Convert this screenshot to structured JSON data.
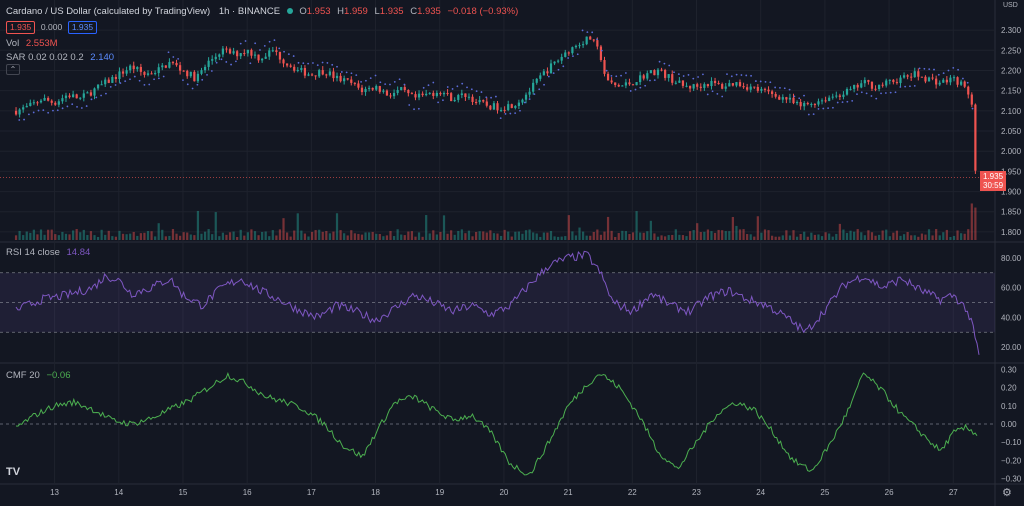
{
  "header": {
    "title": "Cardano / US Dollar (calculated by TradingView)",
    "interval": "1h",
    "exchange": "BINANCE",
    "ohlc": {
      "o_label": "O",
      "o": "1.953",
      "h_label": "H",
      "h": "1.959",
      "l_label": "L",
      "l": "1.935",
      "c_label": "C",
      "c": "1.935",
      "change": "−0.018 (−0.93%)"
    },
    "pills": [
      "1.935",
      "0.000",
      "1.935"
    ],
    "vol_label": "Vol",
    "vol_value": "2.553M",
    "sar_label": "SAR 0.02 0.02 0.2",
    "sar_value": "2.140",
    "rsi_label": "RSI 14 close",
    "rsi_value": "14.84",
    "cmf_label": "CMF 20",
    "cmf_value": "−0.06"
  },
  "currency": "USD",
  "price_tag": {
    "price": "1.935",
    "countdown": "30:59"
  },
  "colors": {
    "bg": "#131722",
    "up": "#26a69a",
    "down": "#ef5350",
    "sar": "#5b6bd6",
    "rsi": "#7e57c2",
    "cmf": "#4caf50",
    "grid": "#1e222d",
    "text": "#b2b5be"
  },
  "chart_data": [
    {
      "type": "candlestick",
      "title": "Cardano / US Dollar",
      "x_ticks": [
        "13",
        "14",
        "15",
        "16",
        "17",
        "18",
        "19",
        "20",
        "21",
        "22",
        "23",
        "24",
        "25",
        "26",
        "27"
      ],
      "y_ticks": [
        "2.300",
        "2.250",
        "2.200",
        "2.150",
        "2.100",
        "2.050",
        "2.000",
        "1.950",
        "1.900",
        "1.850",
        "1.800"
      ],
      "ylim": [
        1.78,
        2.33
      ],
      "close_series": [
        [
          12.4,
          2.1
        ],
        [
          12.6,
          2.11
        ],
        [
          12.8,
          2.13
        ],
        [
          13.0,
          2.12
        ],
        [
          13.2,
          2.14
        ],
        [
          13.4,
          2.13
        ],
        [
          13.6,
          2.15
        ],
        [
          13.8,
          2.17
        ],
        [
          14.0,
          2.19
        ],
        [
          14.2,
          2.21
        ],
        [
          14.4,
          2.19
        ],
        [
          14.6,
          2.2
        ],
        [
          14.8,
          2.22
        ],
        [
          15.0,
          2.2
        ],
        [
          15.2,
          2.18
        ],
        [
          15.4,
          2.22
        ],
        [
          15.6,
          2.25
        ],
        [
          15.8,
          2.24
        ],
        [
          16.0,
          2.25
        ],
        [
          16.2,
          2.23
        ],
        [
          16.4,
          2.25
        ],
        [
          16.6,
          2.22
        ],
        [
          16.8,
          2.2
        ],
        [
          17.0,
          2.19
        ],
        [
          17.2,
          2.2
        ],
        [
          17.4,
          2.18
        ],
        [
          17.6,
          2.17
        ],
        [
          17.8,
          2.15
        ],
        [
          18.0,
          2.16
        ],
        [
          18.2,
          2.14
        ],
        [
          18.4,
          2.15
        ],
        [
          18.6,
          2.13
        ],
        [
          18.8,
          2.14
        ],
        [
          19.0,
          2.15
        ],
        [
          19.2,
          2.13
        ],
        [
          19.4,
          2.14
        ],
        [
          19.6,
          2.12
        ],
        [
          19.8,
          2.11
        ],
        [
          20.0,
          2.11
        ],
        [
          20.2,
          2.12
        ],
        [
          20.4,
          2.15
        ],
        [
          20.6,
          2.19
        ],
        [
          20.8,
          2.22
        ],
        [
          21.0,
          2.25
        ],
        [
          21.2,
          2.27
        ],
        [
          21.35,
          2.28
        ],
        [
          21.5,
          2.24
        ],
        [
          21.6,
          2.17
        ],
        [
          21.8,
          2.16
        ],
        [
          22.0,
          2.17
        ],
        [
          22.2,
          2.19
        ],
        [
          22.4,
          2.2
        ],
        [
          22.6,
          2.18
        ],
        [
          22.8,
          2.16
        ],
        [
          23.0,
          2.16
        ],
        [
          23.2,
          2.17
        ],
        [
          23.4,
          2.16
        ],
        [
          23.6,
          2.17
        ],
        [
          23.8,
          2.16
        ],
        [
          24.0,
          2.15
        ],
        [
          24.2,
          2.14
        ],
        [
          24.4,
          2.13
        ],
        [
          24.6,
          2.11
        ],
        [
          24.8,
          2.12
        ],
        [
          25.0,
          2.13
        ],
        [
          25.2,
          2.14
        ],
        [
          25.4,
          2.15
        ],
        [
          25.6,
          2.17
        ],
        [
          25.8,
          2.16
        ],
        [
          26.0,
          2.17
        ],
        [
          26.2,
          2.18
        ],
        [
          26.4,
          2.19
        ],
        [
          26.6,
          2.18
        ],
        [
          26.8,
          2.17
        ],
        [
          27.0,
          2.18
        ],
        [
          27.1,
          2.17
        ],
        [
          27.2,
          2.15
        ],
        [
          27.28,
          2.14
        ],
        [
          27.32,
          2.02
        ],
        [
          27.36,
          1.9
        ],
        [
          27.4,
          1.935
        ]
      ],
      "last_price": 1.935
    },
    {
      "type": "bar",
      "title": "Vol",
      "value": "2.553M"
    },
    {
      "type": "line",
      "title": "RSI 14 close",
      "y_ticks": [
        "80.00",
        "60.00",
        "40.00",
        "20.00"
      ],
      "ylim": [
        10,
        90
      ],
      "bands": [
        30,
        50,
        70
      ],
      "series": [
        [
          12.4,
          45
        ],
        [
          12.8,
          52
        ],
        [
          13.2,
          55
        ],
        [
          13.6,
          60
        ],
        [
          13.8,
          68
        ],
        [
          14.0,
          65
        ],
        [
          14.2,
          56
        ],
        [
          14.5,
          60
        ],
        [
          14.8,
          66
        ],
        [
          15.0,
          55
        ],
        [
          15.3,
          48
        ],
        [
          15.6,
          60
        ],
        [
          15.9,
          66
        ],
        [
          16.2,
          58
        ],
        [
          16.5,
          52
        ],
        [
          16.8,
          45
        ],
        [
          17.1,
          40
        ],
        [
          17.4,
          48
        ],
        [
          17.7,
          44
        ],
        [
          18.0,
          38
        ],
        [
          18.3,
          46
        ],
        [
          18.6,
          55
        ],
        [
          18.9,
          50
        ],
        [
          19.2,
          44
        ],
        [
          19.5,
          48
        ],
        [
          19.8,
          42
        ],
        [
          20.1,
          48
        ],
        [
          20.4,
          62
        ],
        [
          20.7,
          75
        ],
        [
          21.0,
          80
        ],
        [
          21.3,
          82
        ],
        [
          21.5,
          70
        ],
        [
          21.7,
          50
        ],
        [
          22.0,
          44
        ],
        [
          22.3,
          56
        ],
        [
          22.6,
          48
        ],
        [
          22.9,
          44
        ],
        [
          23.2,
          54
        ],
        [
          23.5,
          58
        ],
        [
          23.8,
          52
        ],
        [
          24.1,
          48
        ],
        [
          24.4,
          40
        ],
        [
          24.7,
          30
        ],
        [
          25.0,
          45
        ],
        [
          25.3,
          62
        ],
        [
          25.6,
          68
        ],
        [
          25.9,
          60
        ],
        [
          26.2,
          66
        ],
        [
          26.5,
          58
        ],
        [
          26.8,
          52
        ],
        [
          27.0,
          55
        ],
        [
          27.2,
          46
        ],
        [
          27.3,
          34
        ],
        [
          27.4,
          14.84
        ]
      ],
      "value": "14.84"
    },
    {
      "type": "line",
      "title": "CMF 20",
      "y_ticks": [
        "0.30",
        "0.20",
        "0.10",
        "0.00",
        "−0.10",
        "−0.20",
        "−0.30"
      ],
      "ylim": [
        -0.33,
        0.33
      ],
      "zero_line": 0,
      "series": [
        [
          12.4,
          -0.02
        ],
        [
          12.7,
          0.05
        ],
        [
          13.0,
          0.1
        ],
        [
          13.3,
          0.12
        ],
        [
          13.6,
          0.08
        ],
        [
          13.9,
          0.02
        ],
        [
          14.2,
          0.0
        ],
        [
          14.5,
          0.03
        ],
        [
          14.8,
          0.08
        ],
        [
          15.1,
          0.13
        ],
        [
          15.4,
          0.2
        ],
        [
          15.7,
          0.27
        ],
        [
          16.0,
          0.22
        ],
        [
          16.3,
          0.15
        ],
        [
          16.6,
          0.12
        ],
        [
          16.9,
          0.08
        ],
        [
          17.2,
          0.0
        ],
        [
          17.5,
          -0.12
        ],
        [
          17.8,
          -0.18
        ],
        [
          18.0,
          -0.05
        ],
        [
          18.3,
          0.12
        ],
        [
          18.6,
          0.15
        ],
        [
          18.9,
          0.08
        ],
        [
          19.2,
          0.02
        ],
        [
          19.5,
          0.05
        ],
        [
          19.8,
          -0.05
        ],
        [
          20.1,
          -0.22
        ],
        [
          20.4,
          -0.28
        ],
        [
          20.7,
          -0.1
        ],
        [
          21.0,
          0.1
        ],
        [
          21.3,
          0.22
        ],
        [
          21.5,
          0.28
        ],
        [
          21.8,
          0.2
        ],
        [
          22.1,
          0.05
        ],
        [
          22.4,
          -0.15
        ],
        [
          22.7,
          -0.25
        ],
        [
          23.0,
          -0.1
        ],
        [
          23.3,
          0.05
        ],
        [
          23.6,
          0.12
        ],
        [
          23.9,
          0.08
        ],
        [
          24.2,
          -0.05
        ],
        [
          24.5,
          -0.2
        ],
        [
          24.8,
          -0.26
        ],
        [
          25.1,
          -0.1
        ],
        [
          25.4,
          0.1
        ],
        [
          25.6,
          0.28
        ],
        [
          25.9,
          0.18
        ],
        [
          26.2,
          0.05
        ],
        [
          26.5,
          -0.05
        ],
        [
          26.8,
          -0.15
        ],
        [
          27.0,
          -0.05
        ],
        [
          27.2,
          -0.02
        ],
        [
          27.4,
          -0.06
        ]
      ],
      "value": "−0.06"
    }
  ]
}
